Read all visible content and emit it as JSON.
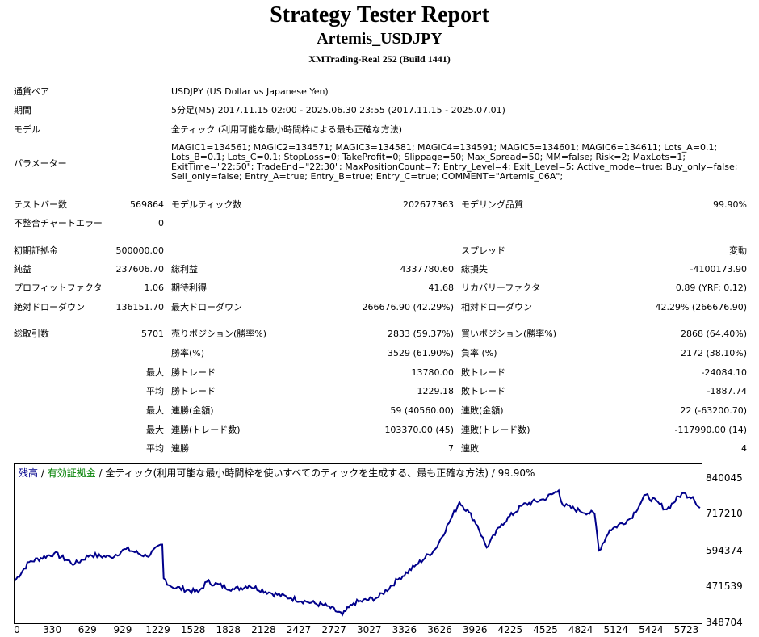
{
  "header": {
    "title": "Strategy Tester Report",
    "subtitle": "Artemis_USDJPY",
    "build": "XMTrading-Real 252 (Build 1441)"
  },
  "info": {
    "symbol_label": "通貨ペア",
    "symbol_value": "USDJPY (US Dollar vs Japanese Yen)",
    "period_label": "期間",
    "period_value": "5分足(M5) 2017.11.15 02:00 - 2025.06.30 23:55 (2017.11.15 - 2025.07.01)",
    "model_label": "モデル",
    "model_value": "全ティック (利用可能な最小時間枠による最も正確な方法)",
    "params_label": "パラメーター",
    "params_value": "MAGIC1=134561; MAGIC2=134571; MAGIC3=134581; MAGIC4=134591; MAGIC5=134601; MAGIC6=134611; Lots_A=0.1; Lots_B=0.1; Lots_C=0.1; StopLoss=0; TakeProfit=0; Slippage=50; Max_Spread=50; MM=false; Risk=2; MaxLots=1; ExitTime=\"22:50\"; TradeEnd=\"22:30\"; MaxPositionCount=7; Entry_Level=4; Exit_Level=5; Active_mode=true; Buy_only=false; Sell_only=false; Entry_A=true; Entry_B=true; Entry_C=true; COMMENT=\"Artemis_06A\";"
  },
  "stats": {
    "bars_label": "テストバー数",
    "bars_value": "569864",
    "ticks_label": "モデルティック数",
    "ticks_value": "202677363",
    "quality_label": "モデリング品質",
    "quality_value": "99.90%",
    "mismatch_label": "不整合チャートエラー",
    "mismatch_value": "0",
    "deposit_label": "初期証拠金",
    "deposit_value": "500000.00",
    "spread_label": "スプレッド",
    "spread_value": "変動",
    "net_label": "純益",
    "net_value": "237606.70",
    "gross_profit_label": "総利益",
    "gross_profit_value": "4337780.60",
    "gross_loss_label": "総損失",
    "gross_loss_value": "-4100173.90",
    "pf_label": "プロフィットファクタ",
    "pf_value": "1.06",
    "expected_label": "期待利得",
    "expected_value": "41.68",
    "recovery_label": "リカバリーファクタ",
    "recovery_value": "0.89 (YRF: 0.12)",
    "abs_dd_label": "絶対ドローダウン",
    "abs_dd_value": "136151.70",
    "max_dd_label": "最大ドローダウン",
    "max_dd_value": "266676.90 (42.29%)",
    "rel_dd_label": "相対ドローダウン",
    "rel_dd_value": "42.29% (266676.90)",
    "trades_label": "総取引数",
    "trades_value": "5701",
    "short_label": "売りポジション(勝率%)",
    "short_value": "2833 (59.37%)",
    "long_label": "買いポジション(勝率%)",
    "long_value": "2868 (64.40%)",
    "winrate_label": "勝率(%)",
    "winrate_value": "3529 (61.90%)",
    "lossrate_label": "負率 (%)",
    "lossrate_value": "2172 (38.10%)",
    "max_word": "最大",
    "avg_word": "平均",
    "largest_win_label": "勝トレード",
    "largest_win_value": "13780.00",
    "largest_loss_label": "敗トレード",
    "largest_loss_value": "-24084.10",
    "avg_win_label": "勝トレード",
    "avg_win_value": "1229.18",
    "avg_loss_label": "敗トレード",
    "avg_loss_value": "-1887.74",
    "max_cons_win_label": "連勝(金額)",
    "max_cons_win_value": "59 (40560.00)",
    "max_cons_loss_label": "連敗(金額)",
    "max_cons_loss_value": "22 (-63200.70)",
    "max_cons_profit_label": "連勝(トレード数)",
    "max_cons_profit_value": "103370.00 (45)",
    "max_cons_lossamt_label": "連敗(トレード数)",
    "max_cons_lossamt_value": "-117990.00 (14)",
    "avg_cons_win_label": "連勝",
    "avg_cons_win_value": "7",
    "avg_cons_loss_label": "連敗",
    "avg_cons_loss_value": "4"
  },
  "chart_data": {
    "type": "line",
    "legend": {
      "balance": "残高",
      "sep1": " / ",
      "equity": "有効証拠金",
      "rest": " / 全ティック(利用可能な最小時間枠を使いすべてのティックを生成する、最も正確な方法) / 99.90%"
    },
    "colors": {
      "balance": "#00008b",
      "equity": "#008000",
      "text": "#000000"
    },
    "y_ticks": [
      "840045",
      "717210",
      "594374",
      "471539",
      "348704"
    ],
    "x_ticks": [
      "0",
      "330",
      "629",
      "929",
      "1229",
      "1528",
      "1828",
      "2128",
      "2427",
      "2727",
      "3027",
      "3326",
      "3626",
      "3926",
      "4225",
      "4525",
      "4824",
      "5124",
      "5424",
      "5723"
    ],
    "ylim": [
      348704,
      840045
    ],
    "xlim": [
      0,
      5701
    ],
    "series": [
      {
        "x": [
          0,
          120,
          330,
          500,
          629,
          800,
          929,
          1100,
          1229,
          1240,
          1300,
          1528,
          1600,
          1828,
          1950,
          2128,
          2300,
          2427,
          2600,
          2727,
          2820,
          3027,
          3200,
          3326,
          3500,
          3626,
          3700,
          3780,
          3850,
          3926,
          4050,
          4225,
          4400,
          4525,
          4560,
          4700,
          4824,
          4860,
          4950,
          5124,
          5250,
          5424,
          5550,
          5640,
          5700
        ],
        "y": [
          490000,
          555000,
          585000,
          548000,
          580000,
          572000,
          600000,
          575000,
          615000,
          500000,
          472000,
          452000,
          488000,
          462000,
          475000,
          450000,
          432000,
          420000,
          405000,
          375000,
          415000,
          435000,
          500000,
          540000,
          600000,
          700000,
          760000,
          725000,
          680000,
          605000,
          685000,
          750000,
          770000,
          800000,
          750000,
          730000,
          720000,
          595000,
          665000,
          705000,
          785000,
          735000,
          790000,
          778000,
          740000
        ]
      }
    ]
  }
}
